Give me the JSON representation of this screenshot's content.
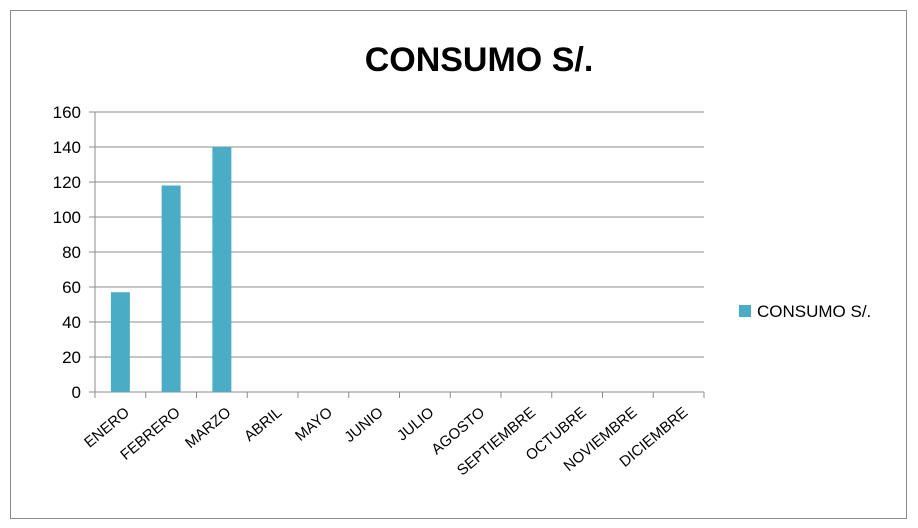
{
  "chart_data": {
    "type": "bar",
    "title": "CONSUMO S/.",
    "xlabel": "",
    "ylabel": "",
    "categories": [
      "ENERO",
      "FEBRERO",
      "MARZO",
      "ABRIL",
      "MAYO",
      "JUNIO",
      "JULIO",
      "AGOSTO",
      "SEPTIEMBRE",
      "OCTUBRE",
      "NOVIEMBRE",
      "DICIEMBRE"
    ],
    "series": [
      {
        "name": "CONSUMO S/.",
        "values": [
          57,
          118,
          140,
          null,
          null,
          null,
          null,
          null,
          null,
          null,
          null,
          null
        ]
      }
    ],
    "ylim": [
      0,
      160
    ],
    "yticks": [
      0,
      20,
      40,
      60,
      80,
      100,
      120,
      140,
      160
    ],
    "grid": true,
    "legend_position": "right",
    "colors": {
      "bar": "#4bacc6",
      "grid": "#8c8c8c",
      "axis": "#8c8c8c"
    }
  }
}
